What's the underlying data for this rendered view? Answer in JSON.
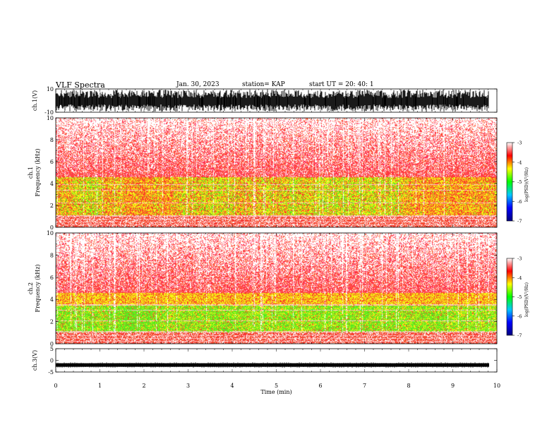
{
  "header": {
    "title": "VLF Spectra",
    "date": "Jan. 30, 2023",
    "station": "station= KAP",
    "start": "start  UT  =   20: 40: 1"
  },
  "chart_data": [
    {
      "type": "line",
      "title": "",
      "ylabel": "ch.1(V)",
      "ylim": [
        -10,
        10
      ],
      "yticks": [
        "10",
        "-10"
      ],
      "xlim": [
        0,
        10
      ],
      "note": "dense waveform spanning approximately -10 to 10 V"
    },
    {
      "type": "heatmap",
      "ylabel_line1": "ch.1",
      "ylabel_line2": "Frequency (kHz)",
      "ylim": [
        0,
        10
      ],
      "yticks": [
        "0",
        "2",
        "4",
        "6",
        "8",
        "10"
      ],
      "xlim": [
        0,
        10
      ],
      "colorbar": {
        "label": "log(PSD)(V²/Hz)",
        "range": [
          -7,
          -3
        ],
        "ticks": [
          "-3",
          "-4",
          "-5",
          "-6",
          "-7"
        ],
        "colors": [
          "#000080",
          "#0000ff",
          "#00c8ff",
          "#00ff00",
          "#ffff00",
          "#ff0000",
          "#ffffff"
        ]
      },
      "bands": [
        {
          "freq_range_khz": [
            0,
            1
          ],
          "level": "red/white lines"
        },
        {
          "freq_range_khz": [
            1,
            4.5
          ],
          "level": "yellow-green"
        },
        {
          "freq_range_khz": [
            4.5,
            10
          ],
          "level": "red/white speckle"
        }
      ]
    },
    {
      "type": "heatmap",
      "ylabel_line1": "ch.2",
      "ylabel_line2": "Frequency (kHz)",
      "ylim": [
        0,
        10
      ],
      "yticks": [
        "0",
        "2",
        "4",
        "6",
        "8",
        "10"
      ],
      "xlim": [
        0,
        10
      ],
      "colorbar": {
        "label": "log(PSD)(V²/Hz)",
        "range": [
          -7,
          -3
        ],
        "ticks": [
          "-3",
          "-4",
          "-5",
          "-6",
          "-7"
        ],
        "colors": [
          "#000080",
          "#0000ff",
          "#00c8ff",
          "#00ff00",
          "#ffff00",
          "#ff0000",
          "#ffffff"
        ]
      },
      "bands": [
        {
          "freq_range_khz": [
            0,
            1
          ],
          "level": "red/white lines"
        },
        {
          "freq_range_khz": [
            1,
            3.5
          ],
          "level": "green"
        },
        {
          "freq_range_khz": [
            3.5,
            4.5
          ],
          "level": "yellow"
        },
        {
          "freq_range_khz": [
            4.5,
            10
          ],
          "level": "red/white speckle"
        }
      ]
    },
    {
      "type": "line",
      "ylabel": "ch.3(V)",
      "ylim": [
        -5,
        5
      ],
      "yticks": [
        "5",
        "0",
        "-5"
      ],
      "xlim": [
        0,
        10
      ],
      "xlabel": "Time (min)",
      "xticks": [
        "0",
        "1",
        "2",
        "3",
        "4",
        "5",
        "6",
        "7",
        "8",
        "9",
        "10"
      ],
      "note": "narrow band around approximately -2 V"
    }
  ]
}
